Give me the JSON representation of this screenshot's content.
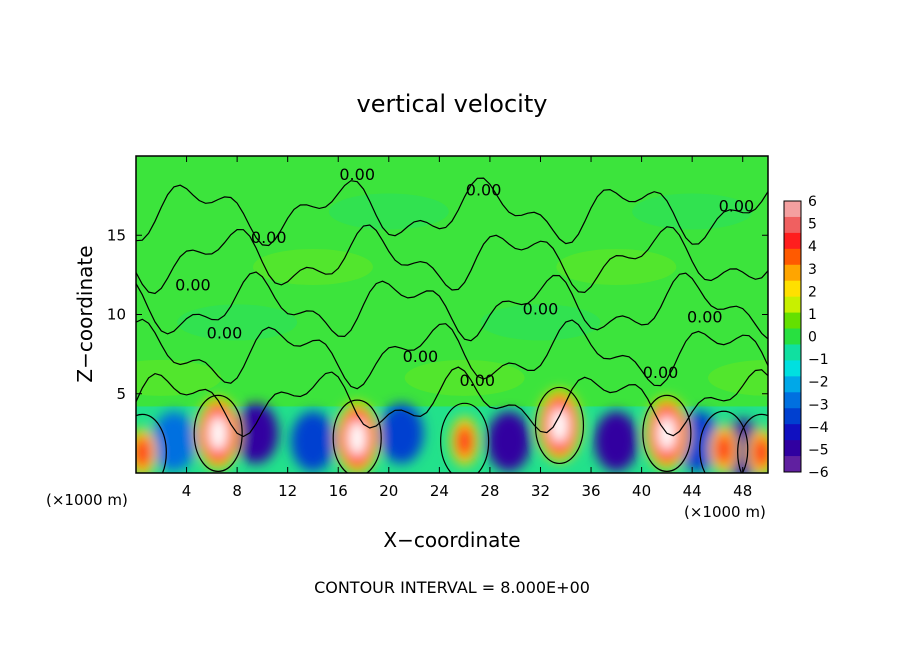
{
  "chart_data": {
    "type": "heatmap",
    "title": "vertical velocity",
    "xlabel": "X−coordinate",
    "ylabel": "Z−coordinate",
    "x_unit_left": "(×1000 m)",
    "x_unit_right": "(×1000 m)",
    "footer": "CONTOUR INTERVAL = 8.000E+00",
    "xlim": [
      0,
      50
    ],
    "ylim": [
      0,
      20
    ],
    "x_ticks": [
      4,
      8,
      12,
      16,
      20,
      24,
      28,
      32,
      36,
      40,
      44,
      48
    ],
    "y_ticks": [
      5,
      10,
      15
    ],
    "colorbar": {
      "labels": [
        "6",
        "5",
        "4",
        "3",
        "2",
        "1",
        "0",
        "−1",
        "−2",
        "−3",
        "−4",
        "−5",
        "−6"
      ],
      "colors": [
        "#f4a0a0",
        "#f06060",
        "#ff1e1e",
        "#ff5a00",
        "#ffa500",
        "#ffe000",
        "#c8f000",
        "#64e000",
        "#28e040",
        "#10e0a0",
        "#00e0e0",
        "#00a8e8",
        "#0070e0",
        "#0040d0",
        "#1010c0",
        "#3000a0",
        "#6020a0"
      ]
    },
    "contour_labels": [
      {
        "x": 17.5,
        "z": 18.5,
        "text": "0.00"
      },
      {
        "x": 27.5,
        "z": 17.5,
        "text": "0.00"
      },
      {
        "x": 47.5,
        "z": 16.5,
        "text": "0.00"
      },
      {
        "x": 10.5,
        "z": 14.5,
        "text": "0.00"
      },
      {
        "x": 4.5,
        "z": 11.5,
        "text": "0.00"
      },
      {
        "x": 7.0,
        "z": 8.5,
        "text": "0.00"
      },
      {
        "x": 32.0,
        "z": 10.0,
        "text": "0.00"
      },
      {
        "x": 45.0,
        "z": 9.5,
        "text": "0.00"
      },
      {
        "x": 22.5,
        "z": 7.0,
        "text": "0.00"
      },
      {
        "x": 27.0,
        "z": 5.5,
        "text": "0.00"
      },
      {
        "x": 41.5,
        "z": 6.0,
        "text": "0.00"
      }
    ],
    "updraft_cells": [
      {
        "x": 0.5,
        "z": 1.3,
        "w": 4
      },
      {
        "x": 6.5,
        "z": 2.5,
        "w": 6
      },
      {
        "x": 17.5,
        "z": 2.2,
        "w": 6
      },
      {
        "x": 26.0,
        "z": 2.0,
        "w": 3
      },
      {
        "x": 33.5,
        "z": 3.0,
        "w": 6
      },
      {
        "x": 42.0,
        "z": 2.5,
        "w": 6
      },
      {
        "x": 46.5,
        "z": 1.5,
        "w": 4
      },
      {
        "x": 49.5,
        "z": 1.3,
        "w": 4
      }
    ],
    "downdraft_cells": [
      {
        "x": 3.0,
        "z": 2.0,
        "w": -3
      },
      {
        "x": 9.5,
        "z": 2.5,
        "w": -5
      },
      {
        "x": 14.0,
        "z": 2.0,
        "w": -4
      },
      {
        "x": 21.0,
        "z": 2.5,
        "w": -4
      },
      {
        "x": 29.5,
        "z": 2.0,
        "w": -5
      },
      {
        "x": 38.0,
        "z": 2.0,
        "w": -5
      },
      {
        "x": 44.5,
        "z": 2.0,
        "w": -4
      },
      {
        "x": 48.0,
        "z": 1.5,
        "w": -5
      }
    ]
  }
}
